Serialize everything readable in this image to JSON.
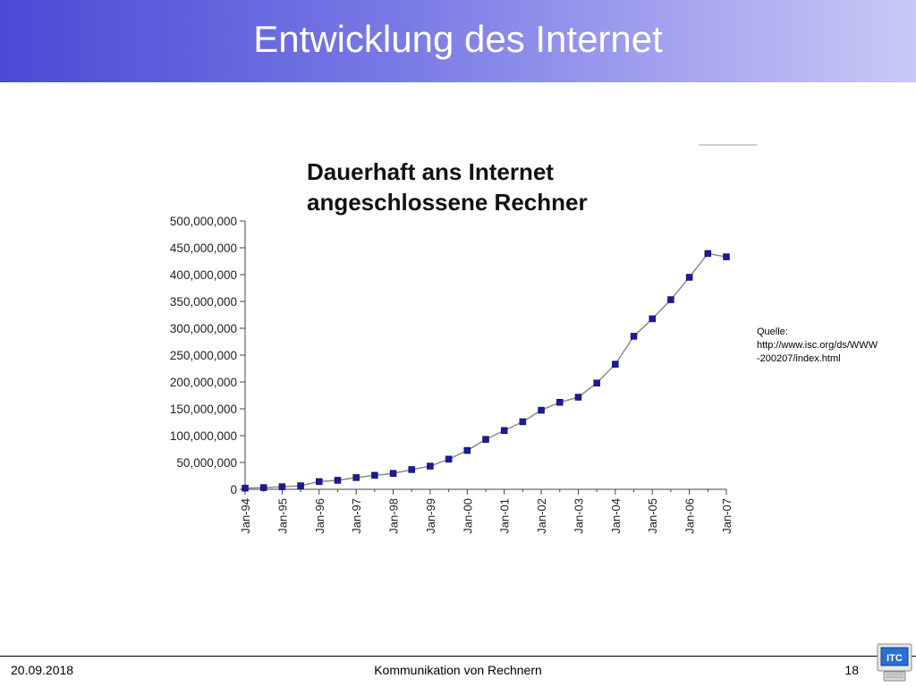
{
  "slide": {
    "title": "Entwicklung des Internet"
  },
  "chart_data": {
    "type": "line",
    "title_lines": [
      "Dauerhaft ans Internet",
      "angeschlossene Rechner"
    ],
    "ylim": [
      0,
      500000000
    ],
    "y_ticks": [
      "0",
      "50,000,000",
      "100,000,000",
      "150,000,000",
      "200,000,000",
      "250,000,000",
      "300,000,000",
      "350,000,000",
      "400,000,000",
      "450,000,000",
      "500,000,000"
    ],
    "x_tick_labels": [
      "Jan-94",
      "Jan-95",
      "Jan-96",
      "Jan-97",
      "Jan-98",
      "Jan-99",
      "Jan-00",
      "Jan-01",
      "Jan-02",
      "Jan-03",
      "Jan-04",
      "Jan-05",
      "Jan-06",
      "Jan-07"
    ],
    "grid": false,
    "marker_color": "#1a1a9a",
    "line_color": "#8c8c8c",
    "series": [
      {
        "x": [
          "Jan-94",
          "Jul-94",
          "Jan-95",
          "Jul-95",
          "Jan-96",
          "Jul-96",
          "Jan-97",
          "Jul-97",
          "Jan-98",
          "Jul-98",
          "Jan-99",
          "Jul-99",
          "Jan-00",
          "Jul-00",
          "Jan-01",
          "Jul-01",
          "Jan-02",
          "Jul-02",
          "Jan-03",
          "Jul-03",
          "Jan-04",
          "Jul-04",
          "Jan-05",
          "Jul-05",
          "Jan-06",
          "Jul-06",
          "Jan-07"
        ],
        "values": [
          2217000,
          3212000,
          4852000,
          6642000,
          14352000,
          16729000,
          21819000,
          26053000,
          29670000,
          36739000,
          43230000,
          56218000,
          72398000,
          93047000,
          109574000,
          125888000,
          147345000,
          162128000,
          171638000,
          198000000,
          233101000,
          285139000,
          317646000,
          353284000,
          394991000,
          439286000,
          433193000
        ]
      }
    ]
  },
  "source_note": {
    "lines": [
      "Quelle:",
      "http://www.isc.org/ds/WWW",
      "-200207/index.html"
    ]
  },
  "footer": {
    "date": "20.09.2018",
    "title": "Kommunikation von Rechnern",
    "page": "18",
    "logo_text": "ITC"
  }
}
